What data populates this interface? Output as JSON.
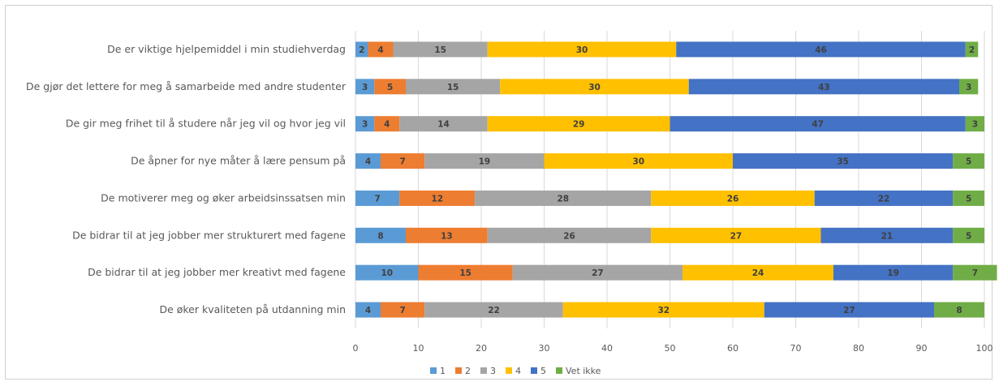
{
  "chart_data": {
    "type": "bar",
    "orientation": "horizontal",
    "stacked": true,
    "categories": [
      "De er viktige hjelpemiddel i min studiehverdag",
      "De gjør det lettere for meg å samarbeide med andre studenter",
      "De gir meg frihet til å studere når jeg vil og hvor jeg vil",
      "De åpner for nye måter å lære pensum på",
      "De motiverer meg og øker arbeidsinssatsen min",
      "De bidrar til at jeg jobber mer strukturert med fagene",
      "De bidrar til at jeg jobber mer kreativt med fagene",
      "De øker kvaliteten på utdanning min"
    ],
    "series": [
      {
        "name": "1",
        "color": "#5b9bd5",
        "values": [
          2,
          3,
          3,
          4,
          7,
          8,
          10,
          4
        ]
      },
      {
        "name": "2",
        "color": "#ed7d31",
        "values": [
          4,
          5,
          4,
          7,
          12,
          13,
          15,
          7
        ]
      },
      {
        "name": "3",
        "color": "#a5a5a5",
        "values": [
          15,
          15,
          14,
          19,
          28,
          26,
          27,
          22
        ]
      },
      {
        "name": "4",
        "color": "#ffc000",
        "values": [
          30,
          30,
          29,
          30,
          26,
          27,
          24,
          32
        ]
      },
      {
        "name": "5",
        "color": "#4472c4",
        "values": [
          46,
          43,
          47,
          35,
          22,
          21,
          19,
          27
        ]
      },
      {
        "name": "Vet ikke",
        "color": "#70ad47",
        "values": [
          2,
          3,
          3,
          5,
          5,
          5,
          7,
          8
        ]
      }
    ],
    "xlim": [
      0,
      100
    ],
    "xticks": [
      "0",
      "10",
      "20",
      "30",
      "40",
      "50",
      "60",
      "70",
      "80",
      "90",
      "100"
    ],
    "grid": true,
    "legend_position": "bottom",
    "title": "",
    "xlabel": "",
    "ylabel": ""
  }
}
